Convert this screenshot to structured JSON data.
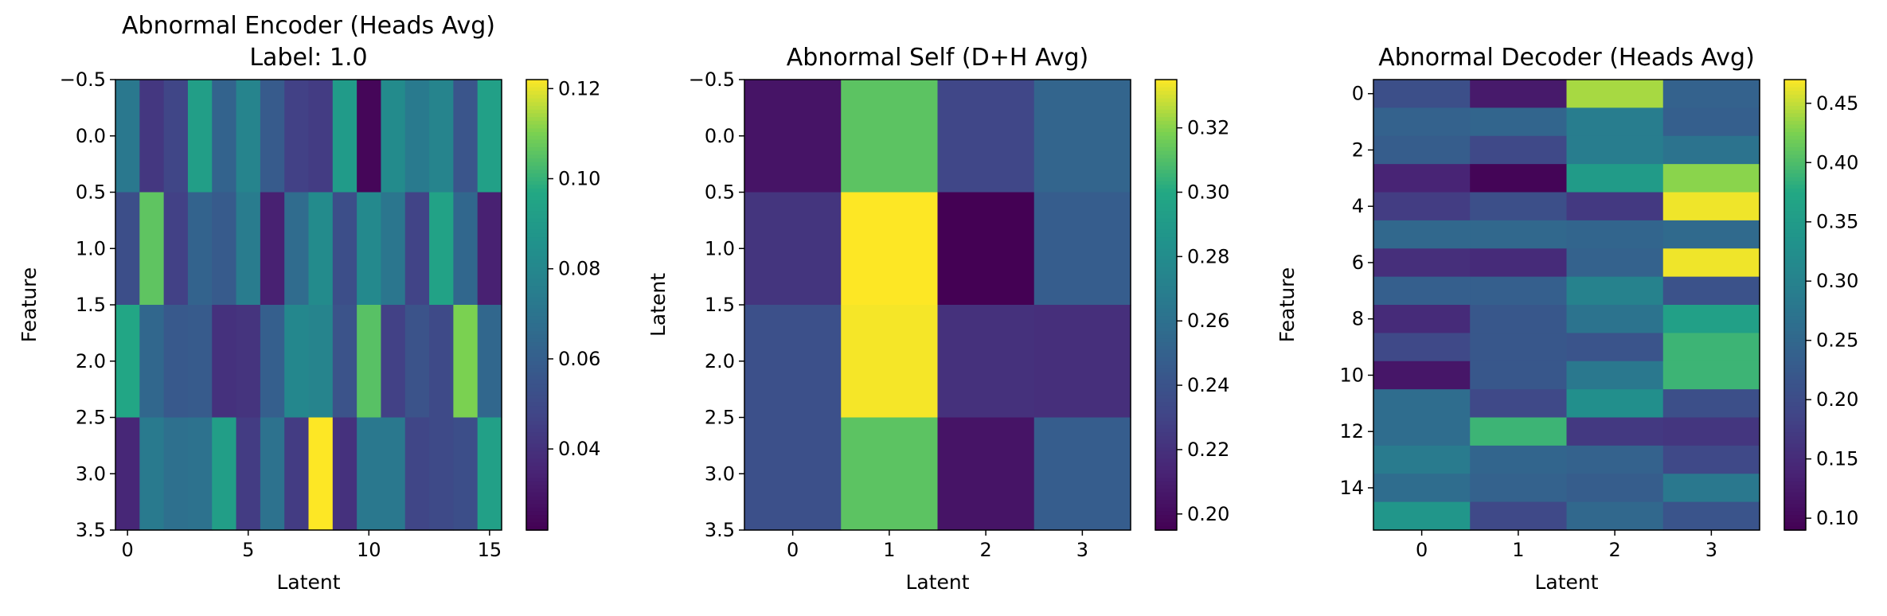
{
  "chart_data": [
    {
      "type": "heatmap",
      "title": "Abnormal Encoder (Heads Avg)",
      "subtitle": "Label: 1.0",
      "xlabel": "Latent",
      "ylabel": "Feature",
      "colormap": "viridis",
      "x_ticks": [
        "0",
        "5",
        "10",
        "15"
      ],
      "x_tick_values": [
        0,
        5,
        10,
        15
      ],
      "y_ticks": [
        "−0.5",
        "0.0",
        "0.5",
        "1.0",
        "1.5",
        "2.0",
        "2.5",
        "3.0",
        "3.5"
      ],
      "y_tick_values": [
        -0.5,
        0.0,
        0.5,
        1.0,
        1.5,
        2.0,
        2.5,
        3.0,
        3.5
      ],
      "xlim": [
        -0.5,
        15.5
      ],
      "ylim": [
        -0.5,
        3.5
      ],
      "colorbar_range": [
        0.022,
        0.122
      ],
      "colorbar_ticks": [
        "0.04",
        "0.06",
        "0.08",
        "0.10",
        "0.12"
      ],
      "colorbar_tick_values": [
        0.04,
        0.06,
        0.08,
        0.1,
        0.12
      ],
      "values": [
        [
          0.072,
          0.042,
          0.048,
          0.092,
          0.062,
          0.078,
          0.058,
          0.046,
          0.044,
          0.09,
          0.024,
          0.082,
          0.073,
          0.078,
          0.055,
          0.093
        ],
        [
          0.052,
          0.106,
          0.046,
          0.062,
          0.058,
          0.074,
          0.034,
          0.066,
          0.082,
          0.052,
          0.081,
          0.071,
          0.047,
          0.094,
          0.064,
          0.034
        ],
        [
          0.096,
          0.064,
          0.057,
          0.058,
          0.04,
          0.041,
          0.06,
          0.08,
          0.078,
          0.054,
          0.105,
          0.046,
          0.054,
          0.05,
          0.11,
          0.064
        ],
        [
          0.036,
          0.073,
          0.068,
          0.069,
          0.092,
          0.044,
          0.069,
          0.044,
          0.122,
          0.04,
          0.072,
          0.072,
          0.048,
          0.05,
          0.052,
          0.093
        ]
      ]
    },
    {
      "type": "heatmap",
      "title": "Abnormal Self (D+H Avg)",
      "xlabel": "Latent",
      "ylabel": "Latent",
      "colormap": "viridis",
      "x_ticks": [
        "0",
        "1",
        "2",
        "3"
      ],
      "x_tick_values": [
        0,
        1,
        2,
        3
      ],
      "y_ticks": [
        "−0.5",
        "0.0",
        "0.5",
        "1.0",
        "1.5",
        "2.0",
        "2.5",
        "3.0",
        "3.5"
      ],
      "y_tick_values": [
        -0.5,
        0.0,
        0.5,
        1.0,
        1.5,
        2.0,
        2.5,
        3.0,
        3.5
      ],
      "xlim": [
        -0.5,
        3.5
      ],
      "ylim": [
        -0.5,
        3.5
      ],
      "colorbar_range": [
        0.195,
        0.335
      ],
      "colorbar_ticks": [
        "0.20",
        "0.22",
        "0.24",
        "0.26",
        "0.28",
        "0.30",
        "0.32"
      ],
      "colorbar_tick_values": [
        0.2,
        0.22,
        0.24,
        0.26,
        0.28,
        0.3,
        0.32
      ],
      "values": [
        [
          0.205,
          0.312,
          0.232,
          0.252
        ],
        [
          0.222,
          0.335,
          0.195,
          0.247
        ],
        [
          0.238,
          0.334,
          0.22,
          0.219
        ],
        [
          0.238,
          0.312,
          0.205,
          0.247
        ]
      ]
    },
    {
      "type": "heatmap",
      "title": "Abnormal Decoder (Heads Avg)",
      "xlabel": "Latent",
      "ylabel": "Feature",
      "colormap": "viridis",
      "x_ticks": [
        "0",
        "1",
        "2",
        "3"
      ],
      "x_tick_values": [
        0,
        1,
        2,
        3
      ],
      "y_ticks": [
        "0",
        "2",
        "4",
        "6",
        "8",
        "10",
        "12",
        "14"
      ],
      "y_tick_values": [
        0,
        2,
        4,
        6,
        8,
        10,
        12,
        14
      ],
      "xlim": [
        -0.5,
        3.5
      ],
      "ylim": [
        -0.5,
        15.5
      ],
      "colorbar_range": [
        0.09,
        0.47
      ],
      "colorbar_ticks": [
        "0.10",
        "0.15",
        "0.20",
        "0.25",
        "0.30",
        "0.35",
        "0.40",
        "0.45"
      ],
      "colorbar_tick_values": [
        0.1,
        0.15,
        0.2,
        0.25,
        0.3,
        0.35,
        0.4,
        0.45
      ],
      "values": [
        [
          0.205,
          0.125,
          0.44,
          0.24
        ],
        [
          0.24,
          0.245,
          0.29,
          0.235
        ],
        [
          0.23,
          0.195,
          0.29,
          0.27
        ],
        [
          0.14,
          0.095,
          0.35,
          0.43
        ],
        [
          0.175,
          0.205,
          0.17,
          0.465
        ],
        [
          0.25,
          0.25,
          0.245,
          0.255
        ],
        [
          0.155,
          0.15,
          0.24,
          0.465
        ],
        [
          0.235,
          0.235,
          0.3,
          0.21
        ],
        [
          0.15,
          0.22,
          0.27,
          0.36
        ],
        [
          0.195,
          0.22,
          0.215,
          0.39
        ],
        [
          0.12,
          0.22,
          0.28,
          0.39
        ],
        [
          0.26,
          0.195,
          0.325,
          0.205
        ],
        [
          0.26,
          0.39,
          0.17,
          0.165
        ],
        [
          0.285,
          0.245,
          0.24,
          0.195
        ],
        [
          0.26,
          0.24,
          0.23,
          0.28
        ],
        [
          0.34,
          0.195,
          0.25,
          0.215
        ]
      ]
    }
  ]
}
